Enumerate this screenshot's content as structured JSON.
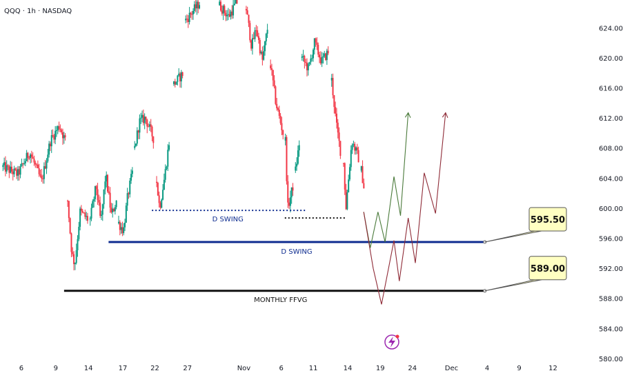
{
  "header": {
    "symbol_title": "QQQ · 1h · NASDAQ"
  },
  "colors": {
    "up": "#089981",
    "down": "#f23645",
    "blue_line": "#0d2b8f",
    "black_line": "#111111",
    "bull_path": "#4a7a3a",
    "bear_path": "#8e2a36",
    "callout_bg": "#ffffc2",
    "lightning": "#9c27b0"
  },
  "chart_data": {
    "type": "candlestick",
    "title": "QQQ · 1h · NASDAQ",
    "ylim": [
      580,
      626
    ],
    "y_ticks": [
      "624.00",
      "620.00",
      "616.00",
      "612.00",
      "608.00",
      "604.00",
      "600.00",
      "596.00",
      "592.00",
      "588.00",
      "584.00",
      "580.00"
    ],
    "y_tick_values": [
      624,
      620,
      616,
      612,
      608,
      604,
      600,
      596,
      592,
      588,
      584,
      580
    ],
    "x_range": [
      0,
      100
    ],
    "x_ticks": [
      {
        "label": "6",
        "x": 3.6
      },
      {
        "label": "9",
        "x": 9.4
      },
      {
        "label": "14",
        "x": 14.9
      },
      {
        "label": "17",
        "x": 20.7
      },
      {
        "label": "22",
        "x": 26.1
      },
      {
        "label": "27",
        "x": 31.6
      },
      {
        "label": "Nov",
        "x": 41.1
      },
      {
        "label": "6",
        "x": 47.4
      },
      {
        "label": "11",
        "x": 52.8
      },
      {
        "label": "14",
        "x": 58.6
      },
      {
        "label": "19",
        "x": 64.1
      },
      {
        "label": "24",
        "x": 69.5
      },
      {
        "label": "Dec",
        "x": 76.1
      },
      {
        "label": "4",
        "x": 82.1
      },
      {
        "label": "9",
        "x": 87.5
      },
      {
        "label": "12",
        "x": 93.2
      }
    ],
    "candle_segments": [
      {
        "x_start": 0.5,
        "x_end": 11.0,
        "anchors": [
          [
            0.5,
            605.5
          ],
          [
            3.0,
            604.5
          ],
          [
            5.0,
            607.5
          ],
          [
            7.0,
            603.5
          ],
          [
            8.5,
            609.0
          ],
          [
            10.0,
            611.0
          ],
          [
            11.0,
            609.0
          ]
        ]
      },
      {
        "x_start": 11.4,
        "x_end": 14.8,
        "anchors": [
          [
            11.4,
            601.0
          ],
          [
            12.1,
            594.0
          ],
          [
            12.6,
            592.5
          ],
          [
            13.5,
            599.5
          ],
          [
            14.8,
            598.5
          ]
        ]
      },
      {
        "x_start": 15.2,
        "x_end": 19.8,
        "anchors": [
          [
            15.2,
            598.5
          ],
          [
            16.2,
            603.0
          ],
          [
            17.0,
            598.0
          ],
          [
            17.8,
            604.5
          ],
          [
            18.8,
            599.0
          ],
          [
            19.8,
            601.5
          ]
        ]
      },
      {
        "x_start": 20.0,
        "x_end": 22.5,
        "anchors": [
          [
            20.0,
            598.0
          ],
          [
            20.8,
            597.0
          ],
          [
            21.5,
            601.5
          ],
          [
            22.5,
            605.5
          ]
        ]
      },
      {
        "x_start": 22.7,
        "x_end": 26.0,
        "anchors": [
          [
            22.7,
            608.0
          ],
          [
            23.5,
            611.5
          ],
          [
            24.5,
            612.0
          ],
          [
            26.0,
            609.0
          ]
        ]
      },
      {
        "x_start": 26.4,
        "x_end": 28.7,
        "anchors": [
          [
            26.4,
            603.5
          ],
          [
            26.9,
            600.0
          ],
          [
            27.8,
            604.5
          ],
          [
            28.7,
            610.0
          ]
        ]
      },
      {
        "x_start": 29.3,
        "x_end": 30.9,
        "anchors": [
          [
            29.3,
            616.5
          ],
          [
            30.9,
            618.0
          ]
        ]
      },
      {
        "x_start": 31.3,
        "x_end": 33.8,
        "anchors": [
          [
            31.3,
            625.0
          ],
          [
            33.8,
            627.5
          ]
        ]
      },
      {
        "x_start": 37.0,
        "x_end": 40.0,
        "anchors": [
          [
            37.0,
            627.0
          ],
          [
            38.5,
            625.5
          ],
          [
            40.0,
            627.5
          ]
        ]
      },
      {
        "x_start": 41.5,
        "x_end": 45.2,
        "anchors": [
          [
            41.5,
            626.5
          ],
          [
            42.4,
            621.5
          ],
          [
            43.2,
            624.0
          ],
          [
            44.2,
            619.5
          ],
          [
            45.2,
            624.5
          ]
        ]
      },
      {
        "x_start": 45.6,
        "x_end": 47.7,
        "anchors": [
          [
            45.6,
            619.0
          ],
          [
            46.5,
            614.0
          ],
          [
            47.7,
            610.0
          ]
        ]
      },
      {
        "x_start": 48.1,
        "x_end": 49.4,
        "anchors": [
          [
            48.1,
            609.0
          ],
          [
            48.5,
            600.0
          ],
          [
            49.4,
            603.0
          ]
        ]
      },
      {
        "x_start": 49.8,
        "x_end": 50.5,
        "anchors": [
          [
            49.8,
            605.0
          ],
          [
            50.5,
            609.0
          ]
        ]
      },
      {
        "x_start": 50.9,
        "x_end": 55.5,
        "anchors": [
          [
            50.9,
            620.0
          ],
          [
            52.0,
            618.5
          ],
          [
            53.0,
            622.0
          ],
          [
            54.2,
            619.5
          ],
          [
            55.5,
            621.0
          ]
        ]
      },
      {
        "x_start": 55.9,
        "x_end": 57.5,
        "anchors": [
          [
            55.9,
            617.0
          ],
          [
            56.7,
            611.0
          ],
          [
            57.5,
            607.0
          ]
        ]
      },
      {
        "x_start": 57.9,
        "x_end": 60.5,
        "anchors": [
          [
            57.9,
            606.0
          ],
          [
            58.3,
            600.0
          ],
          [
            59.3,
            609.0
          ],
          [
            60.5,
            606.5
          ]
        ]
      },
      {
        "x_start": 60.9,
        "x_end": 61.5,
        "anchors": [
          [
            60.9,
            605.0
          ],
          [
            61.5,
            602.0
          ]
        ]
      }
    ],
    "reference_lines": [
      {
        "name": "D SWING",
        "price": 595.5,
        "x_start": 18.3,
        "x_end": 81.6,
        "style": "solid",
        "label_x": 50.0,
        "label_price": 594.3,
        "tag": "595.50"
      },
      {
        "name": "MONTHLY FFVG",
        "price": 589.0,
        "x_start": 10.8,
        "x_end": 81.6,
        "style": "solid",
        "label_x": 47.3,
        "label_price": 587.9,
        "tag": "589.00"
      },
      {
        "name": "D SWING",
        "price": 599.7,
        "x_start": 25.6,
        "x_end": 51.7,
        "style": "dotted",
        "label_x": 38.4,
        "label_price": 598.6,
        "tag": ""
      },
      {
        "name": "",
        "price": 598.7,
        "x_start": 48.0,
        "x_end": 58.4,
        "style": "dotted-black",
        "label_x": 0,
        "label_price": 0,
        "tag": ""
      }
    ],
    "callouts": [
      {
        "label": "595.50",
        "price": 595.5
      },
      {
        "label": "589.00",
        "price": 589.0
      }
    ],
    "projection_paths": [
      {
        "name": "",
        "color": "bull",
        "points": [
          [
            61.3,
            599.5
          ],
          [
            62.4,
            594.7
          ],
          [
            63.7,
            599.5
          ],
          [
            64.9,
            595.5
          ],
          [
            66.4,
            604.2
          ],
          [
            67.5,
            599.0
          ],
          [
            68.8,
            612.7
          ]
        ]
      },
      {
        "name": "",
        "color": "bear",
        "points": [
          [
            61.3,
            599.5
          ],
          [
            62.9,
            592.0
          ],
          [
            64.3,
            587.2
          ],
          [
            66.4,
            595.7
          ],
          [
            67.3,
            590.3
          ],
          [
            68.8,
            598.7
          ],
          [
            70.0,
            592.7
          ],
          [
            71.5,
            604.7
          ],
          [
            73.4,
            599.3
          ],
          [
            75.1,
            612.7
          ]
        ]
      }
    ]
  }
}
